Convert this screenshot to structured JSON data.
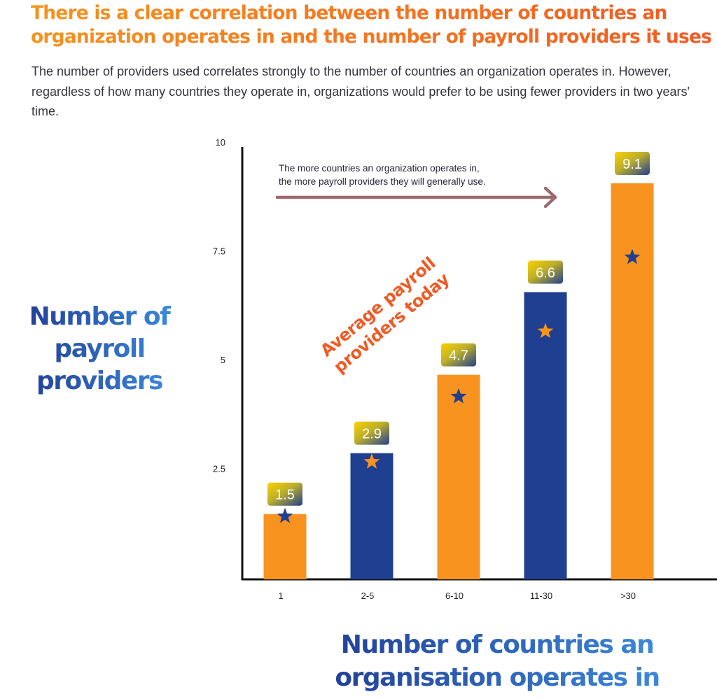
{
  "title": "There is a clear correlation between the number of countries an organization operates in and the number of payroll providers it uses",
  "subtitle": "The number of providers used correlates strongly to the number of countries an organization operates in. However, regardless of how many countries they operate in, organizations would prefer to be using fewer providers in two years' time.",
  "colors": {
    "orange": "#f7931e",
    "blue": "#1f3f91",
    "arrow": "#9c6b6f",
    "title_orange": "#f47a22",
    "label_red": "#f05a24"
  },
  "chart_data": {
    "type": "bar",
    "categories": [
      "1",
      "2-5",
      "6-10",
      "11-30",
      ">30"
    ],
    "values": [
      1.5,
      2.9,
      4.7,
      6.6,
      9.1
    ],
    "star_values": [
      1.45,
      2.7,
      4.2,
      5.7,
      7.4
    ],
    "bar_colors": [
      "#f7931e",
      "#1f3f91",
      "#f7931e",
      "#1f3f91",
      "#f7931e"
    ],
    "star_colors": [
      "#1f3f91",
      "#f7931e",
      "#1f3f91",
      "#f7931e",
      "#1f3f91"
    ],
    "value_labels": [
      "1.5",
      "2.9",
      "4.7",
      "6.6",
      "9.1"
    ],
    "yticks": [
      "2.5",
      "5",
      "7.5",
      "10"
    ],
    "ytick_values": [
      2.5,
      5,
      7.5,
      10
    ],
    "ylim": [
      0,
      10
    ],
    "ylabel": "Number of payroll providers",
    "xlabel": "Number of countries an organisation operates in",
    "annotation_lines": [
      "The more countries an organization operates in,",
      "the more payroll providers they will generally use."
    ],
    "diagonal_label_lines": [
      "Average payroll",
      "providers today"
    ]
  }
}
